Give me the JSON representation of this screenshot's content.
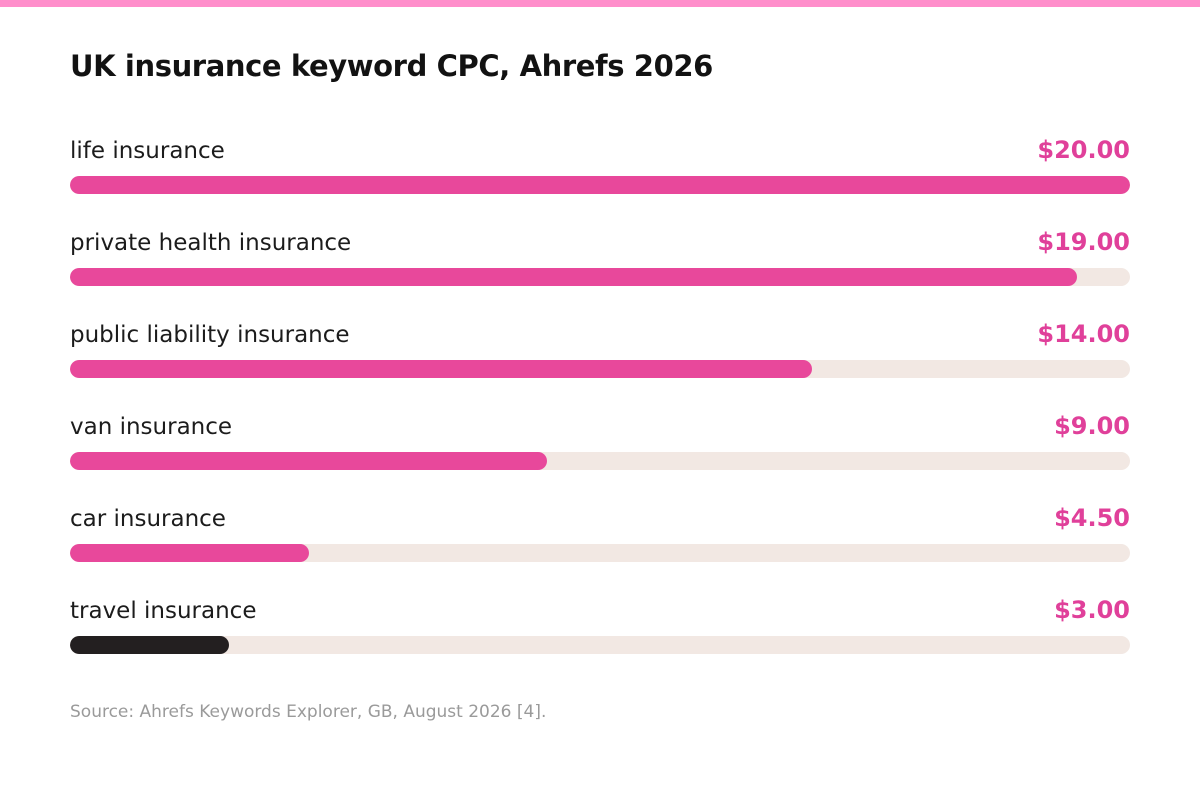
{
  "title": "UK insurance keyword CPC, Ahrefs 2026",
  "source": "Source: Ahrefs Keywords Explorer, GB, August 2026 [4].",
  "colors": {
    "accent_top": "#ff8ecb",
    "bar_fill": "#e8489b",
    "bar_fill_last": "#231f20",
    "track": "#f2e8e3",
    "value_text": "#e0409a"
  },
  "chart_data": {
    "type": "bar",
    "orientation": "horizontal",
    "categories": [
      "life insurance",
      "private health insurance",
      "public liability insurance",
      "van insurance",
      "car insurance",
      "travel insurance"
    ],
    "values": [
      20.0,
      19.0,
      14.0,
      9.0,
      4.5,
      3.0
    ],
    "value_labels": [
      "$20.00",
      "$19.00",
      "$14.00",
      "$9.00",
      "$4.50",
      "$3.00"
    ],
    "title": "UK insurance keyword CPC, Ahrefs 2026",
    "xlim": [
      0,
      20
    ],
    "grid": false,
    "legend": "none"
  }
}
